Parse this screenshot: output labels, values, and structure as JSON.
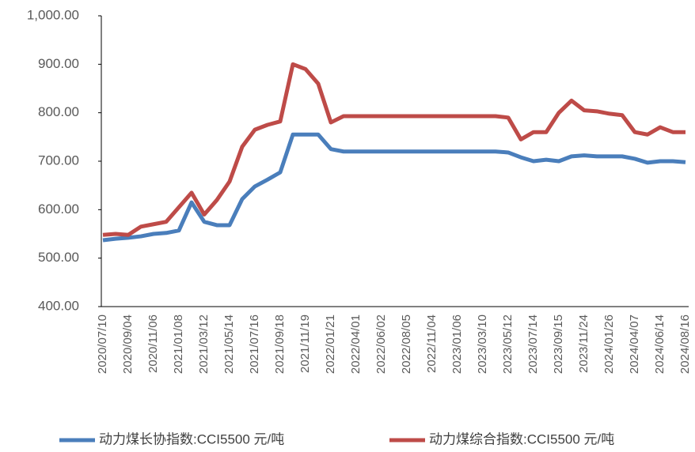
{
  "chart_data": {
    "type": "line",
    "categories": [
      "2020/07/10",
      null,
      "2020/09/04",
      null,
      "2020/11/06",
      null,
      "2021/01/08",
      null,
      "2021/03/12",
      null,
      "2021/05/14",
      null,
      "2021/07/16",
      null,
      "2021/09/18",
      null,
      "2021/11/19",
      null,
      "2022/01/21",
      null,
      "2022/04/01",
      null,
      "2022/06/02",
      null,
      "2022/08/05",
      null,
      "2022/11/04",
      null,
      "2023/01/06",
      null,
      "2023/03/10",
      null,
      "2023/05/12",
      null,
      "2023/07/14",
      null,
      "2023/09/15",
      null,
      "2023/11/24",
      null,
      "2024/01/26",
      null,
      "2024/04/07",
      null,
      "2024/06/14",
      null,
      "2024/08/16"
    ],
    "series": [
      {
        "name": "动力煤长协指数:CCI5500 元/吨",
        "color": "#4a7ebb",
        "values": [
          537,
          540,
          542,
          545,
          550,
          552,
          557,
          615,
          575,
          568,
          568,
          622,
          648,
          662,
          677,
          755,
          755,
          755,
          725,
          720,
          720,
          720,
          720,
          720,
          720,
          720,
          720,
          720,
          720,
          720,
          720,
          720,
          718,
          708,
          700,
          703,
          700,
          710,
          712,
          710,
          710,
          710,
          705,
          697,
          700,
          700,
          698
        ]
      },
      {
        "name": "动力煤综合指数:CCI5500 元/吨",
        "color": "#be4b48",
        "values": [
          548,
          550,
          548,
          565,
          570,
          575,
          605,
          635,
          590,
          620,
          658,
          730,
          765,
          775,
          782,
          900,
          890,
          860,
          780,
          793,
          793,
          793,
          793,
          793,
          793,
          793,
          793,
          793,
          793,
          793,
          793,
          793,
          790,
          745,
          760,
          760,
          800,
          825,
          805,
          803,
          798,
          795,
          760,
          755,
          770,
          760,
          760
        ]
      }
    ],
    "ylim": [
      400,
      1000
    ],
    "yticks": [
      {
        "value": 400,
        "label": "400.00"
      },
      {
        "value": 500,
        "label": "500.00"
      },
      {
        "value": 600,
        "label": "600.00"
      },
      {
        "value": 700,
        "label": "700.00"
      },
      {
        "value": 800,
        "label": "800.00"
      },
      {
        "value": 900,
        "label": "900.00"
      },
      {
        "value": 1000,
        "label": "1,000.00"
      }
    ]
  }
}
